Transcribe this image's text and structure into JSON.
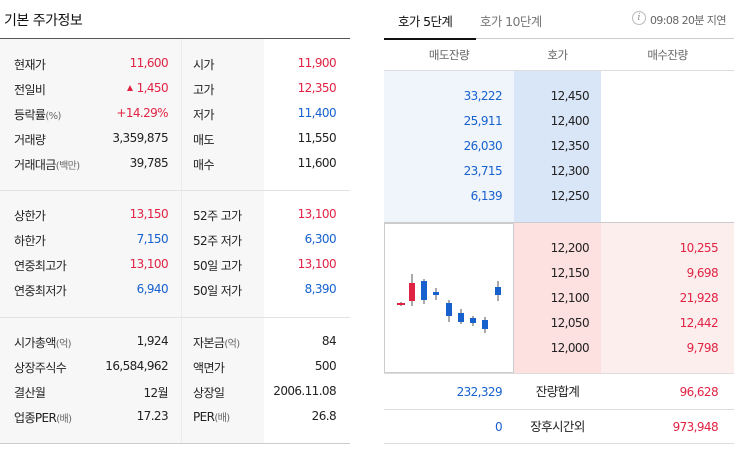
{
  "left": {
    "title": "기본 주가정보",
    "sections": [
      [
        {
          "k1": "현재가",
          "v1": "11,600",
          "c1": "red",
          "k2": "시가",
          "v2": "11,900",
          "c2": "red"
        },
        {
          "k1": "전일비",
          "v1": "1,450",
          "c1": "red",
          "arrow": true,
          "k2": "고가",
          "v2": "12,350",
          "c2": "red"
        },
        {
          "k1": "등락률",
          "u1": "(%)",
          "v1": "+14.29%",
          "c1": "red",
          "k2": "저가",
          "v2": "11,400",
          "c2": "blue"
        },
        {
          "k1": "거래량",
          "v1": "3,359,875",
          "c1": "black",
          "k2": "매도",
          "v2": "11,550",
          "c2": "black"
        },
        {
          "k1": "거래대금",
          "u1": "(백만)",
          "v1": "39,785",
          "c1": "black",
          "k2": "매수",
          "v2": "11,600",
          "c2": "black"
        }
      ],
      [
        {
          "k1": "상한가",
          "v1": "13,150",
          "c1": "red",
          "k2": "52주 고가",
          "v2": "13,100",
          "c2": "red"
        },
        {
          "k1": "하한가",
          "v1": "7,150",
          "c1": "blue",
          "k2": "52주 저가",
          "v2": "6,300",
          "c2": "blue"
        },
        {
          "k1": "연중최고가",
          "v1": "13,100",
          "c1": "red",
          "k2": "50일 고가",
          "v2": "13,100",
          "c2": "red"
        },
        {
          "k1": "연중최저가",
          "v1": "6,940",
          "c1": "blue",
          "k2": "50일 저가",
          "v2": "8,390",
          "c2": "blue"
        }
      ],
      [
        {
          "k1": "시가총액",
          "u1": "(억)",
          "v1": "1,924",
          "c1": "black",
          "k2": "자본금",
          "u2": "(억)",
          "v2": "84",
          "c2": "black"
        },
        {
          "k1": "상장주식수",
          "v1": "16,584,962",
          "c1": "black",
          "k2": "액면가",
          "v2": "500",
          "c2": "black"
        },
        {
          "k1": "결산월",
          "v1": "12월",
          "c1": "black",
          "k2": "상장일",
          "v2": "2006.11.08",
          "c2": "black"
        },
        {
          "k1": "업종PER",
          "u1": "(배)",
          "v1": "17.23",
          "c1": "black",
          "k2": "PER",
          "u2": "(배)",
          "v2": "26.8",
          "c2": "black"
        }
      ]
    ]
  },
  "right": {
    "tabs": [
      "호가 5단계",
      "호가 10단계"
    ],
    "info_icon": "i",
    "delay_text": "09:08 20분 지연",
    "headers": [
      "매도잔량",
      "호가",
      "매수잔량"
    ],
    "asks": [
      {
        "qty": "33,222",
        "price": "12,450"
      },
      {
        "qty": "25,911",
        "price": "12,400"
      },
      {
        "qty": "26,030",
        "price": "12,350"
      },
      {
        "qty": "23,715",
        "price": "12,300"
      },
      {
        "qty": "6,139",
        "price": "12,250"
      }
    ],
    "bids": [
      {
        "price": "12,200",
        "qty": "10,255"
      },
      {
        "price": "12,150",
        "qty": "9,698"
      },
      {
        "price": "12,100",
        "qty": "21,928"
      },
      {
        "price": "12,050",
        "qty": "12,442"
      },
      {
        "price": "12,000",
        "qty": "9,798"
      }
    ],
    "totals": {
      "ask_total": "232,329",
      "label": "잔량합계",
      "bid_total": "96,628"
    },
    "after_hours": {
      "ask": "0",
      "label": "장후시간외",
      "bid": "973,948"
    }
  },
  "colors": {
    "up": "#e12343",
    "down": "#1761ce"
  }
}
